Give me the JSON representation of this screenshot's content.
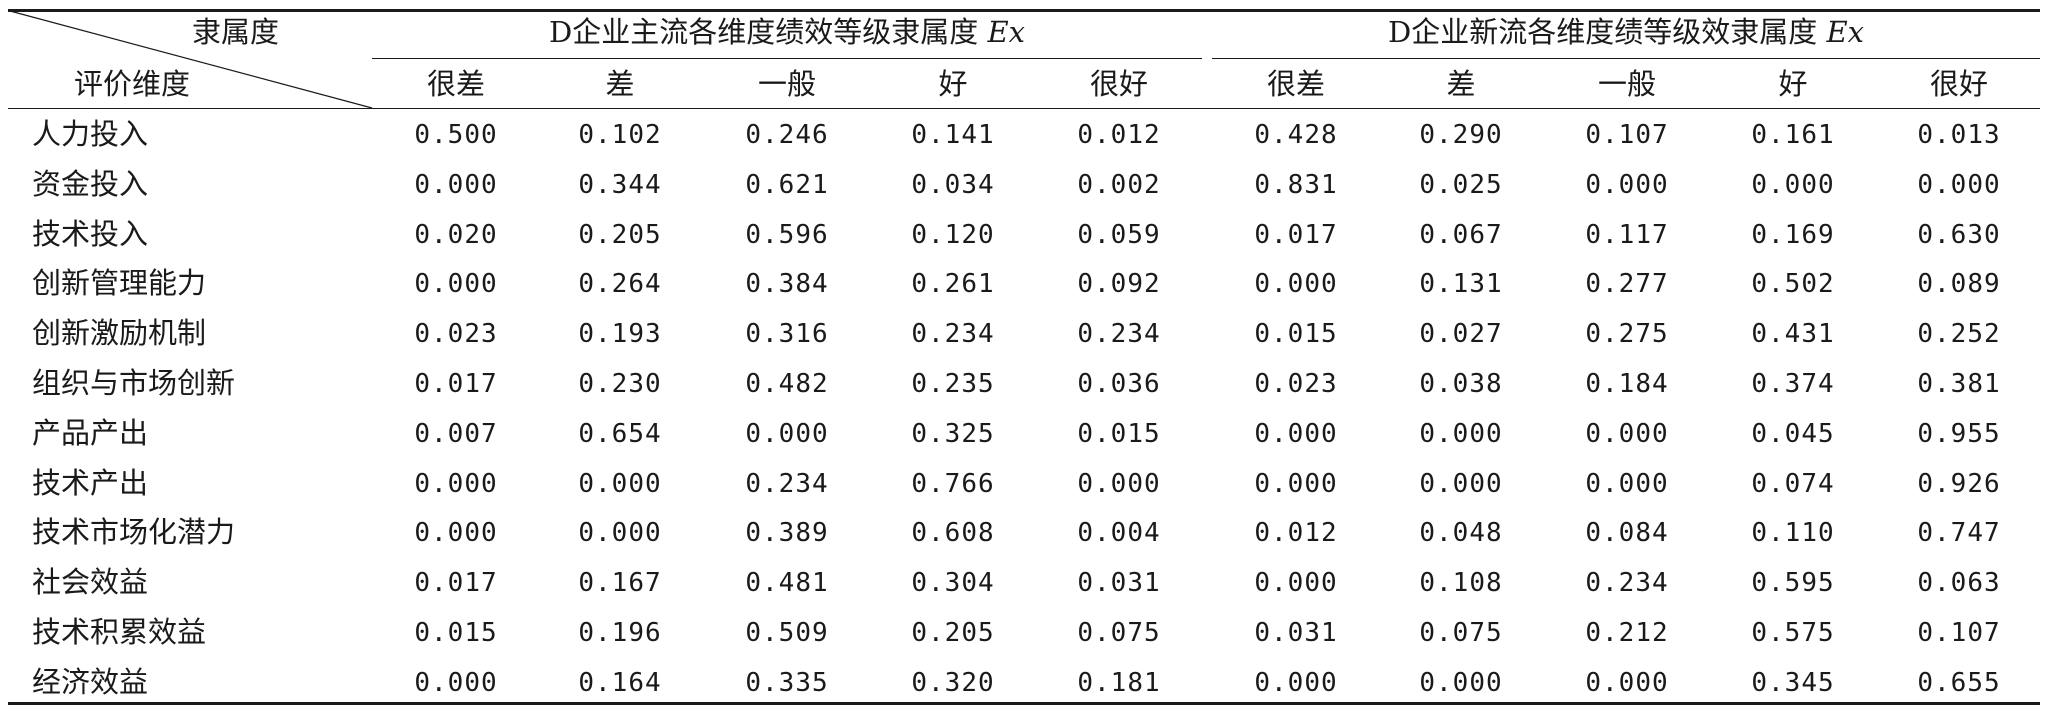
{
  "corner": {
    "top_label": "隶属度",
    "bottom_label": "评价维度"
  },
  "groups": [
    {
      "title_main": "D企业主流各维度绩效等级隶属度 ",
      "title_var": "Ex"
    },
    {
      "title_main": "D企业新流各维度绩等级效隶属度 ",
      "title_var": "Ex"
    }
  ],
  "grades": [
    "很差",
    "差",
    "一般",
    "好",
    "很好"
  ],
  "rows": [
    {
      "label": "人力投入",
      "values": [
        "0.500",
        "0.102",
        "0.246",
        "0.141",
        "0.012",
        "0.428",
        "0.290",
        "0.107",
        "0.161",
        "0.013"
      ]
    },
    {
      "label": "资金投入",
      "values": [
        "0.000",
        "0.344",
        "0.621",
        "0.034",
        "0.002",
        "0.831",
        "0.025",
        "0.000",
        "0.000",
        "0.000"
      ]
    },
    {
      "label": "技术投入",
      "values": [
        "0.020",
        "0.205",
        "0.596",
        "0.120",
        "0.059",
        "0.017",
        "0.067",
        "0.117",
        "0.169",
        "0.630"
      ]
    },
    {
      "label": "创新管理能力",
      "values": [
        "0.000",
        "0.264",
        "0.384",
        "0.261",
        "0.092",
        "0.000",
        "0.131",
        "0.277",
        "0.502",
        "0.089"
      ]
    },
    {
      "label": "创新激励机制",
      "values": [
        "0.023",
        "0.193",
        "0.316",
        "0.234",
        "0.234",
        "0.015",
        "0.027",
        "0.275",
        "0.431",
        "0.252"
      ]
    },
    {
      "label": "组织与市场创新",
      "values": [
        "0.017",
        "0.230",
        "0.482",
        "0.235",
        "0.036",
        "0.023",
        "0.038",
        "0.184",
        "0.374",
        "0.381"
      ]
    },
    {
      "label": "产品产出",
      "values": [
        "0.007",
        "0.654",
        "0.000",
        "0.325",
        "0.015",
        "0.000",
        "0.000",
        "0.000",
        "0.045",
        "0.955"
      ]
    },
    {
      "label": "技术产出",
      "values": [
        "0.000",
        "0.000",
        "0.234",
        "0.766",
        "0.000",
        "0.000",
        "0.000",
        "0.000",
        "0.074",
        "0.926"
      ]
    },
    {
      "label": "技术市场化潜力",
      "values": [
        "0.000",
        "0.000",
        "0.389",
        "0.608",
        "0.004",
        "0.012",
        "0.048",
        "0.084",
        "0.110",
        "0.747"
      ]
    },
    {
      "label": "社会效益",
      "values": [
        "0.017",
        "0.167",
        "0.481",
        "0.304",
        "0.031",
        "0.000",
        "0.108",
        "0.234",
        "0.595",
        "0.063"
      ]
    },
    {
      "label": "技术积累效益",
      "values": [
        "0.015",
        "0.196",
        "0.509",
        "0.205",
        "0.075",
        "0.031",
        "0.075",
        "0.212",
        "0.575",
        "0.107"
      ]
    },
    {
      "label": "经济效益",
      "values": [
        "0.000",
        "0.164",
        "0.335",
        "0.320",
        "0.181",
        "0.000",
        "0.000",
        "0.000",
        "0.345",
        "0.655"
      ]
    }
  ]
}
